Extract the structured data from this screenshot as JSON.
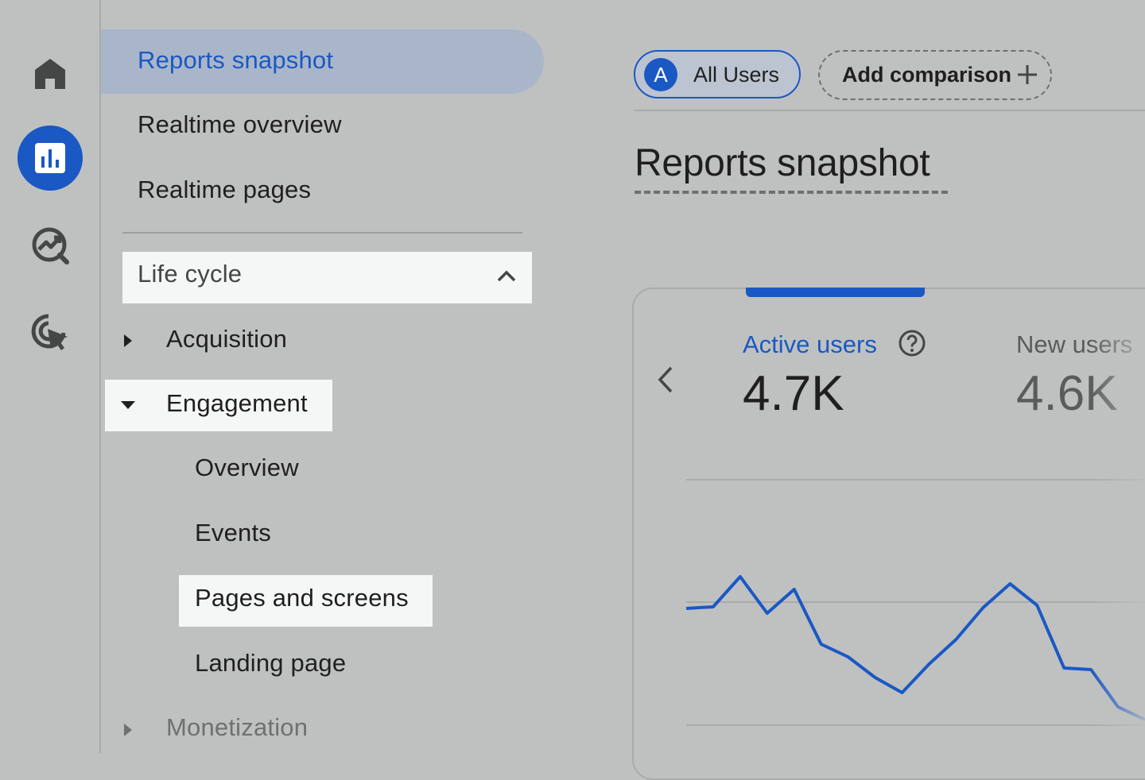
{
  "rail": {
    "items": [
      {
        "icon": "home-icon",
        "active": false
      },
      {
        "icon": "bar-chart-icon",
        "active": true
      },
      {
        "icon": "explore-icon",
        "active": false
      },
      {
        "icon": "advertising-icon",
        "active": false
      }
    ]
  },
  "nav": {
    "reports_snapshot": "Reports snapshot",
    "realtime_overview": "Realtime overview",
    "realtime_pages": "Realtime pages",
    "life_cycle": "Life cycle",
    "acquisition": "Acquisition",
    "engagement": "Engagement",
    "overview": "Overview",
    "events": "Events",
    "pages_and_screens": "Pages and screens",
    "landing_page": "Landing page",
    "monetization": "Monetization"
  },
  "header": {
    "segment_avatar": "A",
    "segment_label": "All Users",
    "add_comparison": "Add comparison"
  },
  "main": {
    "title": "Reports snapshot",
    "metrics": [
      {
        "label": "Active users",
        "value": "4.7K"
      },
      {
        "label": "New users",
        "value": "4.6K"
      }
    ]
  },
  "colors": {
    "accent": "#1a58c4",
    "background": "#bfc1c0",
    "highlight": "#f5f6f6"
  },
  "chart_data": {
    "type": "line",
    "series": [
      {
        "values": [
          0.46,
          0.44,
          0.06,
          0.52,
          0.22,
          0.91,
          1.07,
          1.33,
          1.52,
          1.16,
          0.85,
          0.45,
          0.15,
          0.42,
          1.21,
          1.23,
          1.7,
          1.86
        ]
      }
    ]
  }
}
